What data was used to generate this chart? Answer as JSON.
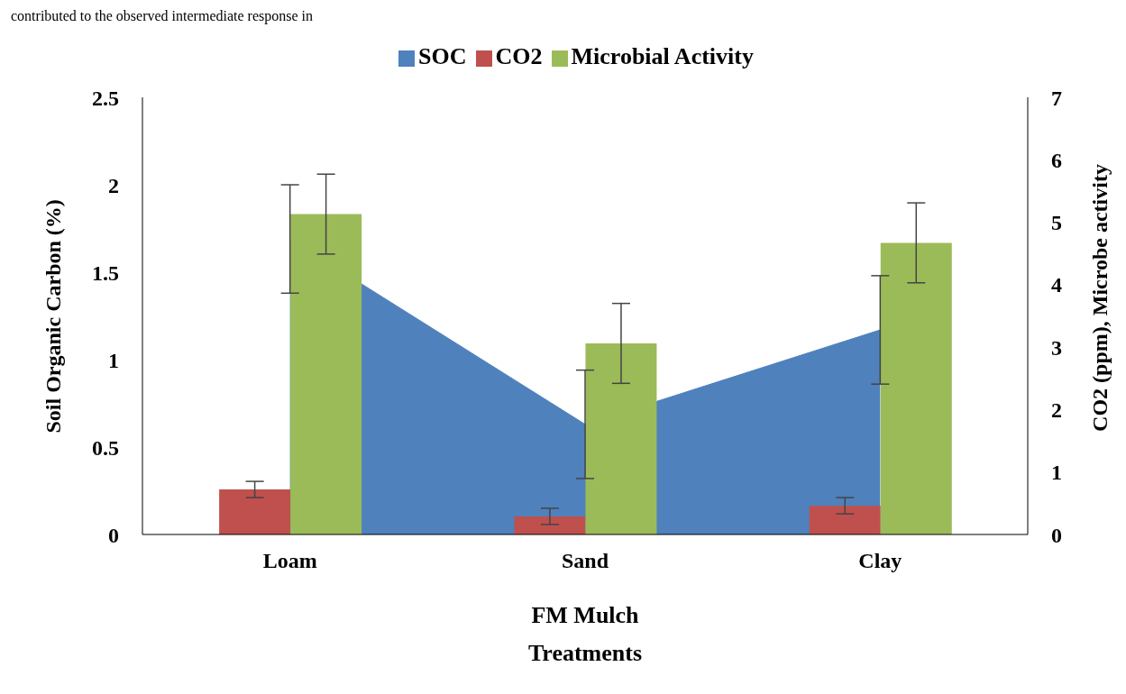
{
  "chart_data": {
    "type": "bar",
    "categories": [
      "Loam",
      "Sand",
      "Clay"
    ],
    "xlabel": "Treatments",
    "ylabel": "Soil Organic Carbon (%)",
    "y2label": "CO2 (ppm), Microbe activity",
    "annotations": [
      "contributed to the observed intermediate response in",
      "FM Mulch"
    ],
    "series": [
      {
        "name": "SOC",
        "type": "area",
        "color": "#4f81bd",
        "values": [
          1.69,
          0.63,
          1.17
        ],
        "errors": [
          0.31,
          0.31,
          0.31
        ]
      },
      {
        "name": "CO2",
        "axis": "y2",
        "color": "#c0504d",
        "values": [
          0.72,
          0.29,
          0.46
        ],
        "errors": [
          0.13,
          0.13,
          0.13
        ]
      },
      {
        "name": "Microbial Activity",
        "axis": "y2",
        "color": "#9bbb59",
        "values": [
          5.13,
          3.06,
          4.67
        ],
        "errors": [
          0.64,
          0.64,
          0.64
        ]
      }
    ],
    "ylim": [
      0,
      2.5
    ],
    "yticks": [
      0,
      0.5,
      1,
      1.5,
      2,
      2.5
    ],
    "y2lim": [
      0,
      7
    ],
    "y2ticks": [
      0,
      1,
      2,
      3,
      4,
      5,
      6,
      7
    ],
    "legend": "top",
    "grid": false
  }
}
